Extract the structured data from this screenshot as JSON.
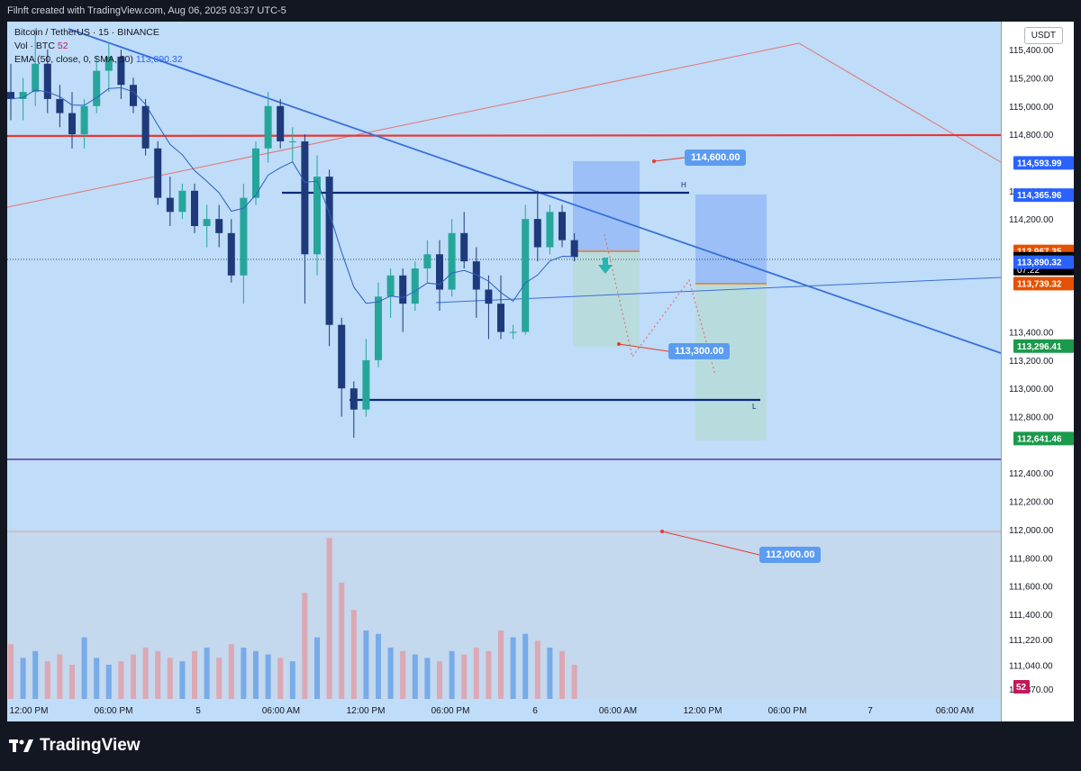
{
  "header": {
    "text": "Filnft created with TradingView.com, Aug 06, 2025 03:37 UTC-5"
  },
  "legend": {
    "symbol": "Bitcoin / TetherUS · 15 · BINANCE",
    "vol_label": "Vol · BTC",
    "vol_value": "52",
    "ema_label": "EMA (50, close, 0, SMA, 50)",
    "ema_value": "113,890.32"
  },
  "currency": "USDT",
  "colors": {
    "background": "#bfdcf8",
    "up": "#26a69a",
    "down": "#1e3a7b",
    "resistance": "#e53935",
    "trendline": "#3a6fd8",
    "support": "#5c35a8",
    "level_line": "#0d2b7a"
  },
  "footer": {
    "brand": "TradingView"
  },
  "chart_data": {
    "type": "candlestick",
    "symbol": "BTCUSDT",
    "interval": "15",
    "y_axis": {
      "ylim": [
        110800,
        115560
      ],
      "tick_labels": [
        "115,400.00",
        "115,200.00",
        "115,000.00",
        "114,800.00",
        "114,400.00",
        "114,200.00",
        "113,400.00",
        "113,200.00",
        "113,000.00",
        "112,800.00",
        "112,400.00",
        "112,200.00",
        "112,000.00",
        "111,800.00",
        "111,600.00",
        "111,400.00",
        "111,220.00",
        "111,040.00",
        "110,870.00"
      ]
    },
    "x_axis": {
      "tick_labels": [
        "12:00 PM",
        "06:00 PM",
        "5",
        "06:00 AM",
        "12:00 PM",
        "06:00 PM",
        "6",
        "06:00 AM",
        "12:00 PM",
        "06:00 PM",
        "7",
        "06:00 AM"
      ]
    },
    "price_tags": [
      {
        "label": "114,593.99",
        "value": 114593.99,
        "color": "#2962ff"
      },
      {
        "label": "114,365.96",
        "value": 114365.96,
        "color": "#2962ff"
      },
      {
        "label": "113,967.35",
        "value": 113967.35,
        "color": "#e65100"
      },
      {
        "label": "113,915.24",
        "value": 113915.24,
        "color": "#000000",
        "sublabel": "07:22"
      },
      {
        "label": "113,890.32",
        "value": 113890.32,
        "color": "#2962ff"
      },
      {
        "label": "113,739.32",
        "value": 113739.32,
        "color": "#e65100"
      },
      {
        "label": "113,296.41",
        "value": 113296.41,
        "color": "#1b9a4c"
      },
      {
        "label": "112,641.46",
        "value": 112641.46,
        "color": "#1b9a4c"
      }
    ],
    "volume_tag": "52",
    "annotations": [
      {
        "label": "114,600.00",
        "value": 114600
      },
      {
        "label": "113,300.00",
        "value": 113300
      },
      {
        "label": "112,000.00",
        "value": 112000
      }
    ],
    "level_markers": {
      "high": "H",
      "low": "L"
    },
    "candles": [
      [
        115100,
        115300,
        114900,
        115050
      ],
      [
        115050,
        115200,
        114900,
        115100
      ],
      [
        115100,
        115550,
        115000,
        115300
      ],
      [
        115300,
        115400,
        114950,
        115050
      ],
      [
        115050,
        115150,
        114850,
        114950
      ],
      [
        114950,
        115100,
        114700,
        114800
      ],
      [
        114800,
        115050,
        114700,
        115000
      ],
      [
        115000,
        115350,
        114950,
        115250
      ],
      [
        115250,
        115450,
        115100,
        115350
      ],
      [
        115350,
        115400,
        115050,
        115150
      ],
      [
        115150,
        115200,
        114950,
        115000
      ],
      [
        115000,
        115050,
        114650,
        114700
      ],
      [
        114700,
        114750,
        114300,
        114350
      ],
      [
        114350,
        114500,
        114150,
        114250
      ],
      [
        114250,
        114450,
        114200,
        114400
      ],
      [
        114400,
        114450,
        114100,
        114150
      ],
      [
        114150,
        114300,
        114000,
        114200
      ],
      [
        114200,
        114300,
        114000,
        114100
      ],
      [
        114100,
        114200,
        113750,
        113800
      ],
      [
        113800,
        114450,
        113600,
        114350
      ],
      [
        114350,
        114750,
        114300,
        114700
      ],
      [
        114700,
        115100,
        114600,
        115000
      ],
      [
        115000,
        115050,
        114700,
        114750
      ],
      [
        114750,
        114850,
        114600,
        114750
      ],
      [
        114750,
        114800,
        113600,
        113950
      ],
      [
        113950,
        114650,
        113800,
        114500
      ],
      [
        114500,
        114550,
        113300,
        113450
      ],
      [
        113450,
        113500,
        112800,
        113000
      ],
      [
        113000,
        113050,
        112650,
        112850
      ],
      [
        112850,
        113350,
        112800,
        113200
      ],
      [
        113200,
        113750,
        113150,
        113650
      ],
      [
        113650,
        113850,
        113500,
        113800
      ],
      [
        113800,
        113850,
        113400,
        113600
      ],
      [
        113600,
        113900,
        113550,
        113850
      ],
      [
        113850,
        114050,
        113750,
        113950
      ],
      [
        113950,
        114050,
        113550,
        113700
      ],
      [
        113700,
        114200,
        113650,
        114100
      ],
      [
        114100,
        114250,
        113850,
        113900
      ],
      [
        113900,
        114000,
        113500,
        113700
      ],
      [
        113700,
        113800,
        113350,
        113600
      ],
      [
        113600,
        113800,
        113350,
        113400
      ],
      [
        113400,
        113450,
        113350,
        113400
      ],
      [
        113400,
        114300,
        113380,
        114200
      ],
      [
        114200,
        114400,
        113900,
        114000
      ],
      [
        114000,
        114300,
        113950,
        114250
      ],
      [
        114250,
        114300,
        114000,
        114050
      ],
      [
        114050,
        114100,
        113900,
        113930
      ]
    ],
    "volumes": [
      160,
      120,
      140,
      110,
      130,
      100,
      180,
      120,
      100,
      110,
      130,
      150,
      140,
      120,
      110,
      140,
      150,
      120,
      160,
      150,
      140,
      130,
      120,
      110,
      310,
      180,
      470,
      340,
      260,
      200,
      190,
      150,
      140,
      130,
      120,
      110,
      140,
      130,
      150,
      140,
      200,
      180,
      190,
      170,
      150,
      140,
      100
    ]
  }
}
